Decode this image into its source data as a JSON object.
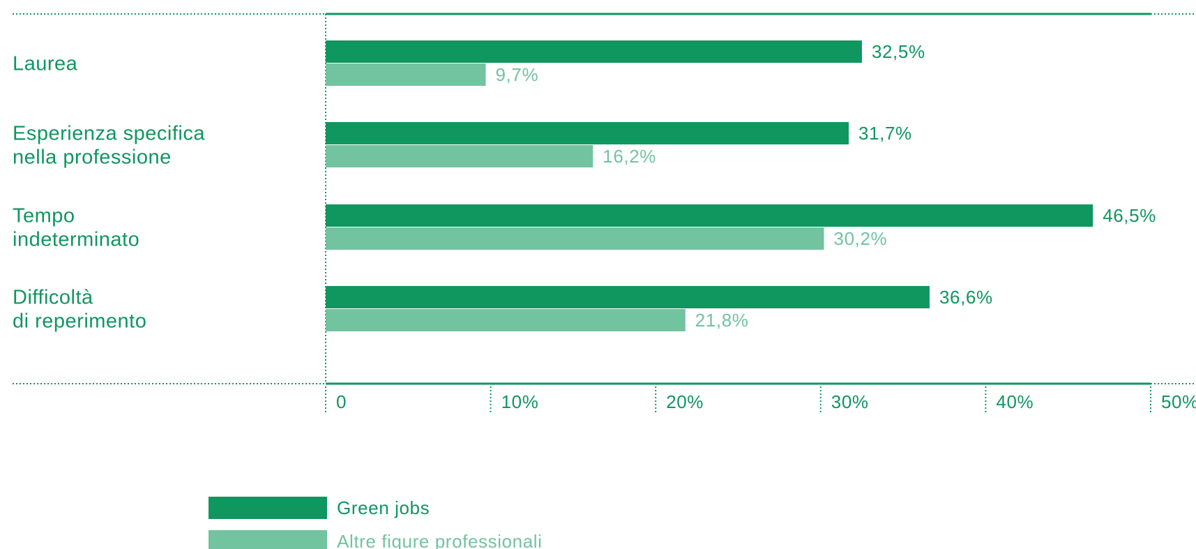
{
  "colors": {
    "primary": "#10965f",
    "secondary": "#72c39f",
    "text": "#10965f",
    "axis": "#10965f"
  },
  "chart_data": {
    "type": "bar",
    "orientation": "horizontal",
    "categories": [
      [
        "Laurea"
      ],
      [
        "Esperienza specifica",
        "nella professione"
      ],
      [
        "Tempo",
        "indeterminato"
      ],
      [
        "Difficoltà",
        "di reperimento"
      ]
    ],
    "series": [
      {
        "name": "Green jobs",
        "values": [
          32.5,
          31.7,
          46.5,
          36.6
        ],
        "labels": [
          "32,5%",
          "31,7%",
          "46,5%",
          "36,6%"
        ]
      },
      {
        "name": "Altre figure professionali",
        "values": [
          9.7,
          16.2,
          30.2,
          21.8
        ],
        "labels": [
          "9,7%",
          "16,2%",
          "30,2%",
          "21,8%"
        ]
      }
    ],
    "x_ticks": [
      {
        "value": 0,
        "label": "0"
      },
      {
        "value": 10,
        "label": "10%"
      },
      {
        "value": 20,
        "label": "20%"
      },
      {
        "value": 30,
        "label": "30%"
      },
      {
        "value": 40,
        "label": "40%"
      },
      {
        "value": 50,
        "label": "50%"
      }
    ],
    "xlim": [
      0,
      50
    ],
    "grid": false,
    "legend_position": "bottom-left"
  }
}
